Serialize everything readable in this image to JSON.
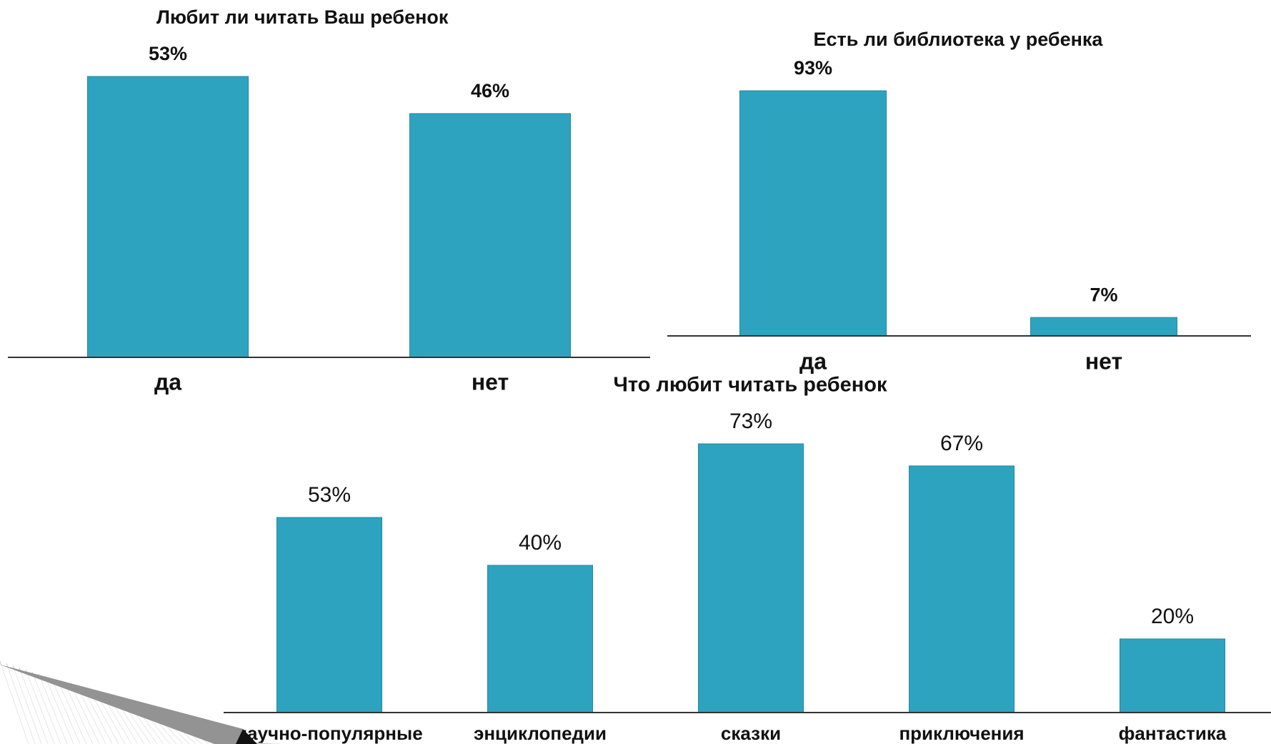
{
  "chart_data": [
    {
      "type": "bar",
      "title": "Любит ли читать Ваш ребенок",
      "categories": [
        "да",
        "нет"
      ],
      "values": [
        53,
        46
      ],
      "value_labels": [
        "53%",
        "46%"
      ],
      "color": "#2ea3bf"
    },
    {
      "type": "bar",
      "title": "Есть ли библиотека у ребенка",
      "categories": [
        "да",
        "нет"
      ],
      "values": [
        93,
        7
      ],
      "value_labels": [
        "93%",
        "7%"
      ],
      "color": "#2ea3bf"
    },
    {
      "type": "bar",
      "title": "Что любит читать ребенок",
      "categories": [
        "научно-популярные",
        "энциклопедии",
        "сказки",
        "приключения",
        "фантастика"
      ],
      "values": [
        53,
        40,
        73,
        67,
        20
      ],
      "value_labels": [
        "53%",
        "40%",
        "73%",
        "67%",
        "20%"
      ],
      "color": "#2ea3bf"
    }
  ]
}
